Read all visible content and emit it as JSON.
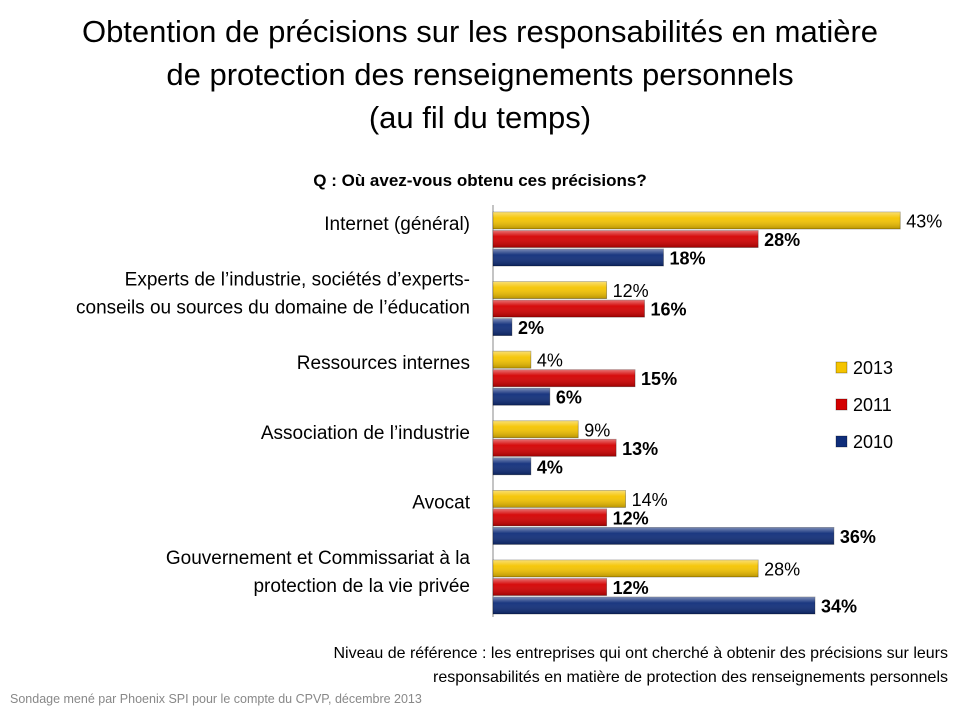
{
  "title_lines": [
    "Obtention de précisions sur les responsabilités en matière",
    "de protection des renseignements personnels",
    "(au fil du temps)"
  ],
  "question": "Q : Où avez-vous obtenu ces précisions?",
  "base_note": "Niveau de référence  : les entreprises qui ont cherché à obtenir des précisions sur leurs responsabilités en matière de protection des renseignements personnels",
  "source": "Sondage mené par Phoenix SPI pour le compte du CPVP, décembre 2013",
  "chart_data": {
    "type": "bar",
    "orientation": "horizontal",
    "categories": [
      [
        "Internet (général)"
      ],
      [
        "Experts de l’industrie, sociétés d’experts-",
        "conseils ou sources du domaine de l’éducation"
      ],
      [
        "Ressources internes"
      ],
      [
        "Association de l’industrie"
      ],
      [
        "Avocat"
      ],
      [
        "Gouvernement et Commissariat à la",
        "protection de la vie privée"
      ]
    ],
    "series": [
      {
        "name": "2013",
        "color": "#F5C400",
        "values": [
          43,
          12,
          4,
          9,
          14,
          28
        ],
        "label_bold": false
      },
      {
        "name": "2011",
        "color": "#D40000",
        "values": [
          28,
          16,
          15,
          13,
          12,
          12
        ],
        "label_bold": true
      },
      {
        "name": "2010",
        "color": "#0F2D7A",
        "values": [
          18,
          2,
          6,
          4,
          36,
          34
        ],
        "label_bold": true
      }
    ],
    "value_suffix": "%",
    "xlim": [
      0,
      45
    ],
    "grid": false,
    "legend_position": "right"
  }
}
